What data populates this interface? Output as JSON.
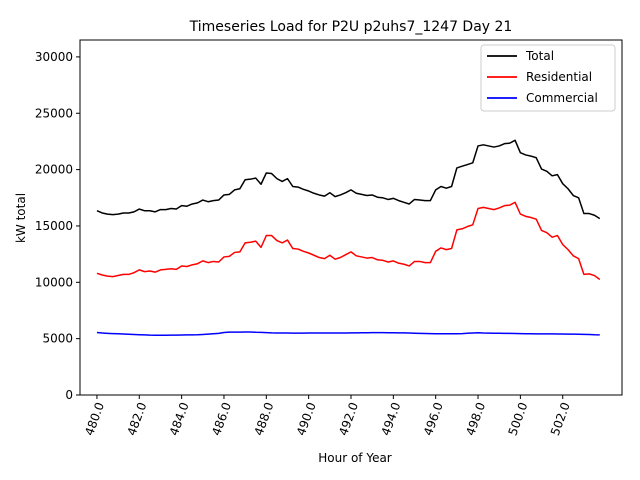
{
  "chart_data": {
    "type": "line",
    "title": "Timeseries Load for P2U p2uhs7_1247  Day 21",
    "xlabel": "Hour of Year",
    "ylabel": "kW total",
    "xlim": [
      479.2,
      504.8
    ],
    "ylim": [
      0,
      31500
    ],
    "xticks": [
      480,
      482,
      484,
      486,
      488,
      490,
      492,
      494,
      496,
      498,
      500,
      502
    ],
    "xtick_labels": [
      "480.0",
      "482.0",
      "484.0",
      "486.0",
      "488.0",
      "490.0",
      "492.0",
      "494.0",
      "496.0",
      "498.0",
      "500.0",
      "502.0"
    ],
    "yticks": [
      0,
      5000,
      10000,
      15000,
      20000,
      25000,
      30000
    ],
    "ytick_labels": [
      "0",
      "5000",
      "10000",
      "15000",
      "20000",
      "25000",
      "30000"
    ],
    "grid": false,
    "legend_position": "top-right",
    "x_start": 480.0,
    "x_step": 0.25,
    "series": [
      {
        "name": "Total",
        "color": "#000000",
        "values": [
          16350,
          16150,
          16050,
          16000,
          16050,
          16150,
          16150,
          16250,
          16500,
          16350,
          16350,
          16250,
          16450,
          16450,
          16550,
          16500,
          16800,
          16750,
          16950,
          17050,
          17300,
          17150,
          17250,
          17300,
          17750,
          17800,
          18200,
          18300,
          19100,
          19150,
          19250,
          18700,
          19700,
          19650,
          19200,
          18950,
          19200,
          18500,
          18450,
          18250,
          18100,
          17900,
          17750,
          17650,
          17950,
          17600,
          17750,
          17950,
          18200,
          17900,
          17800,
          17700,
          17750,
          17550,
          17500,
          17350,
          17450,
          17250,
          17100,
          16950,
          17350,
          17300,
          17250,
          17250,
          18200,
          18500,
          18350,
          18500,
          20150,
          20300,
          20450,
          20600,
          22100,
          22200,
          22100,
          22000,
          22100,
          22300,
          22350,
          22600,
          21500,
          21300,
          21200,
          21050,
          20050,
          19850,
          19450,
          19550,
          18750,
          18300,
          17700,
          17500,
          16100,
          16100,
          15950,
          15650
        ]
      },
      {
        "name": "Residential",
        "color": "#ff0000",
        "values": [
          10800,
          10650,
          10550,
          10500,
          10600,
          10700,
          10700,
          10850,
          11100,
          10950,
          11000,
          10900,
          11100,
          11150,
          11200,
          11150,
          11450,
          11400,
          11550,
          11650,
          11900,
          11750,
          11850,
          11800,
          12250,
          12300,
          12650,
          12700,
          13500,
          13550,
          13650,
          13100,
          14150,
          14150,
          13700,
          13500,
          13750,
          13000,
          12950,
          12750,
          12600,
          12400,
          12200,
          12100,
          12400,
          12050,
          12200,
          12450,
          12700,
          12350,
          12250,
          12150,
          12200,
          12000,
          11950,
          11800,
          11900,
          11700,
          11600,
          11450,
          11850,
          11850,
          11750,
          11750,
          12750,
          13050,
          12900,
          13000,
          14650,
          14750,
          14950,
          15100,
          16550,
          16650,
          16550,
          16450,
          16600,
          16800,
          16850,
          17100,
          16050,
          15850,
          15750,
          15600,
          14600,
          14400,
          14000,
          14150,
          13350,
          12900,
          12350,
          12100,
          10700,
          10750,
          10600,
          10250
        ]
      },
      {
        "name": "Commercial",
        "color": "#0000ff",
        "values": [
          5550,
          5500,
          5470,
          5450,
          5430,
          5410,
          5390,
          5370,
          5350,
          5330,
          5310,
          5300,
          5300,
          5300,
          5310,
          5310,
          5320,
          5330,
          5340,
          5350,
          5370,
          5400,
          5430,
          5470,
          5550,
          5580,
          5580,
          5580,
          5590,
          5590,
          5570,
          5560,
          5540,
          5510,
          5500,
          5500,
          5500,
          5490,
          5490,
          5490,
          5500,
          5500,
          5500,
          5500,
          5500,
          5500,
          5500,
          5500,
          5510,
          5510,
          5520,
          5520,
          5530,
          5530,
          5530,
          5520,
          5520,
          5510,
          5510,
          5500,
          5480,
          5470,
          5460,
          5450,
          5440,
          5430,
          5430,
          5440,
          5440,
          5450,
          5480,
          5500,
          5520,
          5500,
          5490,
          5480,
          5480,
          5470,
          5470,
          5460,
          5450,
          5440,
          5430,
          5420,
          5420,
          5420,
          5420,
          5410,
          5410,
          5400,
          5400,
          5390,
          5380,
          5370,
          5350,
          5340
        ]
      }
    ]
  }
}
